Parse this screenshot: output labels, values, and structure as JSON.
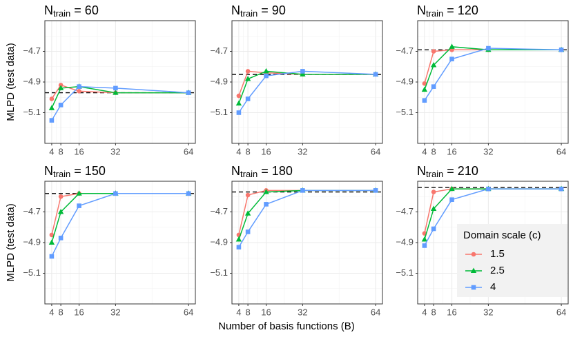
{
  "shared": {
    "xlabel": "Number of basis functions (B)",
    "ylabel": "MLPD (test data)",
    "legend_title": "Domain scale (c)"
  },
  "chart_data": [
    {
      "type": "line",
      "title_main": "N",
      "title_sub": "train",
      "title_rest": "= 60",
      "x": [
        4,
        8,
        16,
        32,
        64
      ],
      "xlim": [
        1,
        67
      ],
      "xticks": [
        4,
        8,
        16,
        32,
        64
      ],
      "xminor": [
        6,
        12,
        24,
        48
      ],
      "ylim": [
        -5.3,
        -4.5
      ],
      "yticks": [
        {
          "value": -4.7,
          "label": "−4.7"
        },
        {
          "value": -4.9,
          "label": "−4.9"
        },
        {
          "value": -5.1,
          "label": "−5.1"
        }
      ],
      "yminor": [
        -4.6,
        -4.8,
        -5.0,
        -5.2
      ],
      "grid": true,
      "reference": -4.97,
      "series": [
        {
          "name": "1.5",
          "color": "#F8766D",
          "marker": "circle",
          "values": [
            -5.01,
            -4.92,
            -4.96,
            -4.97,
            -4.97
          ]
        },
        {
          "name": "2.5",
          "color": "#00BA38",
          "marker": "triangle",
          "values": [
            -5.07,
            -4.94,
            -4.93,
            -4.97,
            -4.97
          ]
        },
        {
          "name": "4",
          "color": "#619CFF",
          "marker": "square",
          "values": [
            -5.15,
            -5.05,
            -4.93,
            -4.94,
            -4.97
          ]
        }
      ]
    },
    {
      "type": "line",
      "title_main": "N",
      "title_sub": "train",
      "title_rest": "= 90",
      "x": [
        4,
        8,
        16,
        32,
        64
      ],
      "xlim": [
        1,
        67
      ],
      "xticks": [
        4,
        8,
        16,
        32,
        64
      ],
      "xminor": [
        6,
        12,
        24,
        48
      ],
      "ylim": [
        -5.3,
        -4.5
      ],
      "yticks": [
        {
          "value": -4.7,
          "label": "−4.7"
        },
        {
          "value": -4.9,
          "label": "−4.9"
        },
        {
          "value": -5.1,
          "label": "−5.1"
        }
      ],
      "yminor": [
        -4.6,
        -4.8,
        -5.0,
        -5.2
      ],
      "grid": true,
      "reference": -4.85,
      "series": [
        {
          "name": "1.5",
          "color": "#F8766D",
          "marker": "circle",
          "values": [
            -4.99,
            -4.83,
            -4.84,
            -4.85,
            -4.85
          ]
        },
        {
          "name": "2.5",
          "color": "#00BA38",
          "marker": "triangle",
          "values": [
            -5.04,
            -4.88,
            -4.83,
            -4.85,
            -4.85
          ]
        },
        {
          "name": "4",
          "color": "#619CFF",
          "marker": "square",
          "values": [
            -5.1,
            -5.01,
            -4.86,
            -4.83,
            -4.85
          ]
        }
      ]
    },
    {
      "type": "line",
      "title_main": "N",
      "title_sub": "train",
      "title_rest": "= 120",
      "x": [
        4,
        8,
        16,
        32,
        64
      ],
      "xlim": [
        1,
        67
      ],
      "xticks": [
        4,
        8,
        16,
        32,
        64
      ],
      "xminor": [
        6,
        12,
        24,
        48
      ],
      "ylim": [
        -5.3,
        -4.5
      ],
      "yticks": [
        {
          "value": -4.7,
          "label": "−4.7"
        },
        {
          "value": -4.9,
          "label": "−4.9"
        },
        {
          "value": -5.1,
          "label": "−5.1"
        }
      ],
      "yminor": [
        -4.6,
        -4.8,
        -5.0,
        -5.2
      ],
      "grid": true,
      "reference": -4.69,
      "series": [
        {
          "name": "1.5",
          "color": "#F8766D",
          "marker": "circle",
          "values": [
            -4.91,
            -4.7,
            -4.69,
            -4.69,
            -4.69
          ]
        },
        {
          "name": "2.5",
          "color": "#00BA38",
          "marker": "triangle",
          "values": [
            -4.95,
            -4.79,
            -4.67,
            -4.69,
            -4.69
          ]
        },
        {
          "name": "4",
          "color": "#619CFF",
          "marker": "square",
          "values": [
            -5.02,
            -4.93,
            -4.75,
            -4.68,
            -4.69
          ]
        }
      ]
    },
    {
      "type": "line",
      "title_main": "N",
      "title_sub": "train",
      "title_rest": "= 150",
      "x": [
        4,
        8,
        16,
        32,
        64
      ],
      "xlim": [
        1,
        67
      ],
      "xticks": [
        4,
        8,
        16,
        32,
        64
      ],
      "xminor": [
        6,
        12,
        24,
        48
      ],
      "ylim": [
        -5.3,
        -4.5
      ],
      "yticks": [
        {
          "value": -4.7,
          "label": "−4.7"
        },
        {
          "value": -4.9,
          "label": "−4.9"
        },
        {
          "value": -5.1,
          "label": "−5.1"
        }
      ],
      "yminor": [
        -4.6,
        -4.8,
        -5.0,
        -5.2
      ],
      "grid": true,
      "reference": -4.58,
      "series": [
        {
          "name": "1.5",
          "color": "#F8766D",
          "marker": "circle",
          "values": [
            -4.85,
            -4.6,
            -4.58,
            -4.58,
            -4.58
          ]
        },
        {
          "name": "2.5",
          "color": "#00BA38",
          "marker": "triangle",
          "values": [
            -4.9,
            -4.7,
            -4.58,
            -4.58,
            -4.58
          ]
        },
        {
          "name": "4",
          "color": "#619CFF",
          "marker": "square",
          "values": [
            -4.99,
            -4.87,
            -4.66,
            -4.58,
            -4.58
          ]
        }
      ]
    },
    {
      "type": "line",
      "title_main": "N",
      "title_sub": "train",
      "title_rest": "= 180",
      "x": [
        4,
        8,
        16,
        32,
        64
      ],
      "xlim": [
        1,
        67
      ],
      "xticks": [
        4,
        8,
        16,
        32,
        64
      ],
      "xminor": [
        6,
        12,
        24,
        48
      ],
      "ylim": [
        -5.3,
        -4.5
      ],
      "yticks": [
        {
          "value": -4.7,
          "label": "−4.7"
        },
        {
          "value": -4.9,
          "label": "−4.9"
        },
        {
          "value": -5.1,
          "label": "−5.1"
        }
      ],
      "yminor": [
        -4.6,
        -4.8,
        -5.0,
        -5.2
      ],
      "grid": true,
      "reference": -4.57,
      "series": [
        {
          "name": "1.5",
          "color": "#F8766D",
          "marker": "circle",
          "values": [
            -4.85,
            -4.59,
            -4.56,
            -4.56,
            -4.56
          ]
        },
        {
          "name": "2.5",
          "color": "#00BA38",
          "marker": "triangle",
          "values": [
            -4.88,
            -4.71,
            -4.57,
            -4.56,
            -4.56
          ]
        },
        {
          "name": "4",
          "color": "#619CFF",
          "marker": "square",
          "values": [
            -4.93,
            -4.83,
            -4.65,
            -4.56,
            -4.56
          ]
        }
      ]
    },
    {
      "type": "line",
      "title_main": "N",
      "title_sub": "train",
      "title_rest": "= 210",
      "x": [
        4,
        8,
        16,
        32,
        64
      ],
      "xlim": [
        1,
        67
      ],
      "xticks": [
        4,
        8,
        16,
        32,
        64
      ],
      "xminor": [
        6,
        12,
        24,
        48
      ],
      "ylim": [
        -5.3,
        -4.5
      ],
      "yticks": [
        {
          "value": -4.7,
          "label": "−4.7"
        },
        {
          "value": -4.9,
          "label": "−4.9"
        },
        {
          "value": -5.1,
          "label": "−5.1"
        }
      ],
      "yminor": [
        -4.6,
        -4.8,
        -5.0,
        -5.2
      ],
      "grid": true,
      "reference": -4.54,
      "series": [
        {
          "name": "1.5",
          "color": "#F8766D",
          "marker": "circle",
          "values": [
            -4.84,
            -4.57,
            -4.55,
            -4.55,
            -4.55
          ]
        },
        {
          "name": "2.5",
          "color": "#00BA38",
          "marker": "triangle",
          "values": [
            -4.88,
            -4.68,
            -4.55,
            -4.55,
            -4.55
          ]
        },
        {
          "name": "4",
          "color": "#619CFF",
          "marker": "square",
          "values": [
            -4.92,
            -4.81,
            -4.62,
            -4.55,
            -4.55
          ]
        }
      ]
    }
  ]
}
